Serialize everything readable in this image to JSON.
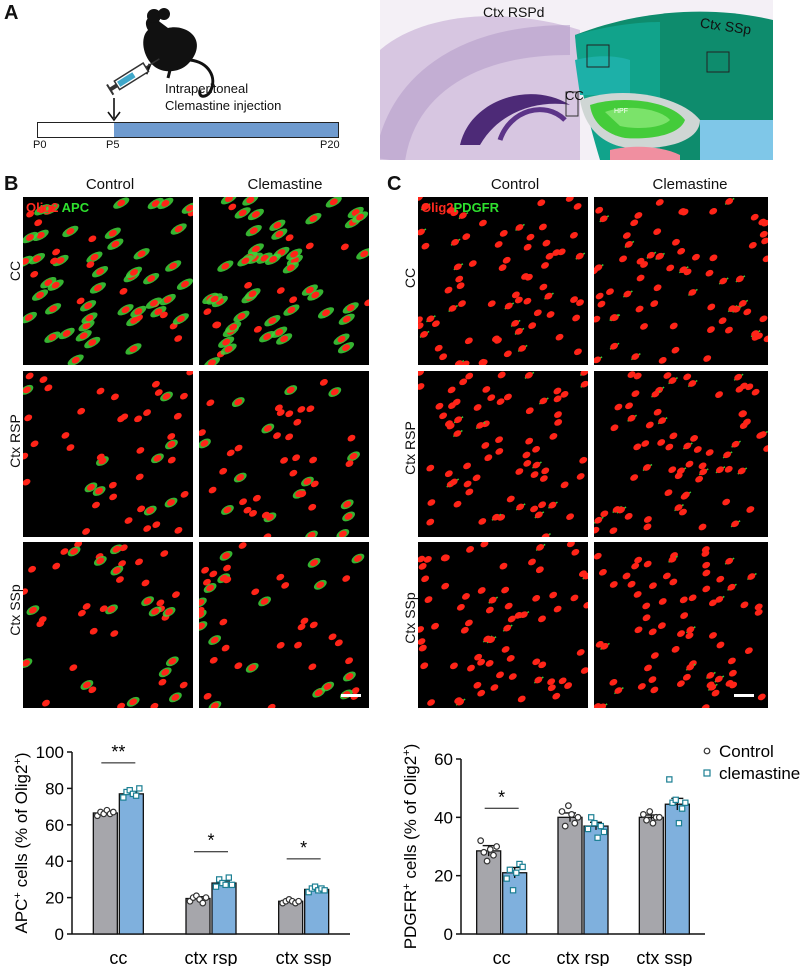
{
  "panel_a": {
    "letter": "A",
    "injection_line1": "Intraperitoneal",
    "injection_line2": "Clemastine injection",
    "timeline_start": "P0",
    "timeline_mark": "P5",
    "timeline_end": "P20",
    "atlas_label_rspd": "Ctx RSPd",
    "atlas_label_ssp": "Ctx  SSp",
    "atlas_label_cc": "CC",
    "atlas_label_hpf": "HPF"
  },
  "panel_b": {
    "letter": "B",
    "col_control": "Control",
    "col_clemastine": "Clemastine",
    "stain_red": "Olig2",
    "stain_green": "APC",
    "rows": [
      "CC",
      "Ctx RSP",
      "Ctx SSp"
    ]
  },
  "panel_c": {
    "letter": "C",
    "col_control": "Control",
    "col_clemastine": "Clemastine",
    "stain_red": "Olig2",
    "stain_green": "PDGFR",
    "rows": [
      "CC",
      "Ctx RSP",
      "Ctx SSp"
    ]
  },
  "colors": {
    "control_bar": "#a6a6ab",
    "clemastine_bar": "#7fb0dd",
    "control_point": "#333333",
    "clemastine_point": "#1b7f93",
    "timeline_fill": "#6f9bcf"
  },
  "chart_data": [
    {
      "type": "bar",
      "ylabel_main": "APC",
      "ylabel_sup": "+",
      "ylabel_rest": " cells (% of Olig2",
      "ylabel_sup2": "+",
      "ylabel_end": ")",
      "categories": [
        "cc",
        "ctx rsp",
        "ctx ssp"
      ],
      "ylim": [
        0,
        100
      ],
      "yticks": [
        0,
        20,
        40,
        60,
        80,
        100
      ],
      "series": [
        {
          "name": "Control",
          "values": [
            66.5,
            19.5,
            18.0
          ],
          "sem": [
            1.0,
            1.0,
            0.6
          ],
          "points": [
            [
              65,
              67,
              66,
              68,
              66,
              67
            ],
            [
              18,
              20,
              21,
              19,
              17,
              20
            ],
            [
              17,
              18,
              19,
              18,
              17,
              18
            ]
          ]
        },
        {
          "name": "clemastine",
          "values": [
            77.0,
            28.0,
            24.5
          ],
          "sem": [
            1.0,
            1.2,
            0.8
          ],
          "points": [
            [
              75,
              78,
              79,
              77,
              76,
              80
            ],
            [
              26,
              30,
              28,
              27,
              31,
              27
            ],
            [
              23,
              25,
              26,
              24,
              25,
              24
            ]
          ]
        }
      ],
      "significance": [
        "**",
        "*",
        "*"
      ]
    },
    {
      "type": "bar",
      "ylabel_main": "PDGFR",
      "ylabel_sup": "+",
      "ylabel_rest": " cells (% of Olig2",
      "ylabel_sup2": "+",
      "ylabel_end": ")",
      "categories": [
        "cc",
        "ctx rsp",
        "ctx ssp"
      ],
      "ylim": [
        0,
        60
      ],
      "yticks": [
        0,
        20,
        40,
        60
      ],
      "series": [
        {
          "name": "Control",
          "values": [
            28.5,
            40.0,
            40.0
          ],
          "sem": [
            1.8,
            1.5,
            0.8
          ],
          "points": [
            [
              32,
              28,
              25,
              29,
              27,
              30
            ],
            [
              42,
              37,
              44,
              41,
              38,
              40
            ],
            [
              41,
              39,
              42,
              38,
              40,
              40
            ]
          ]
        },
        {
          "name": "clemastine",
          "values": [
            21.0,
            37.0,
            44.5
          ],
          "sem": [
            1.8,
            1.3,
            2.0
          ],
          "points": [
            [
              19,
              22,
              15,
              21,
              24,
              23
            ],
            [
              36,
              40,
              38,
              33,
              37,
              35
            ],
            [
              53,
              45,
              46,
              38,
              43,
              45
            ]
          ]
        }
      ],
      "significance": [
        "*",
        "",
        ""
      ],
      "legend": [
        "Control",
        "clemastine"
      ],
      "legend_position": "top-right"
    }
  ]
}
